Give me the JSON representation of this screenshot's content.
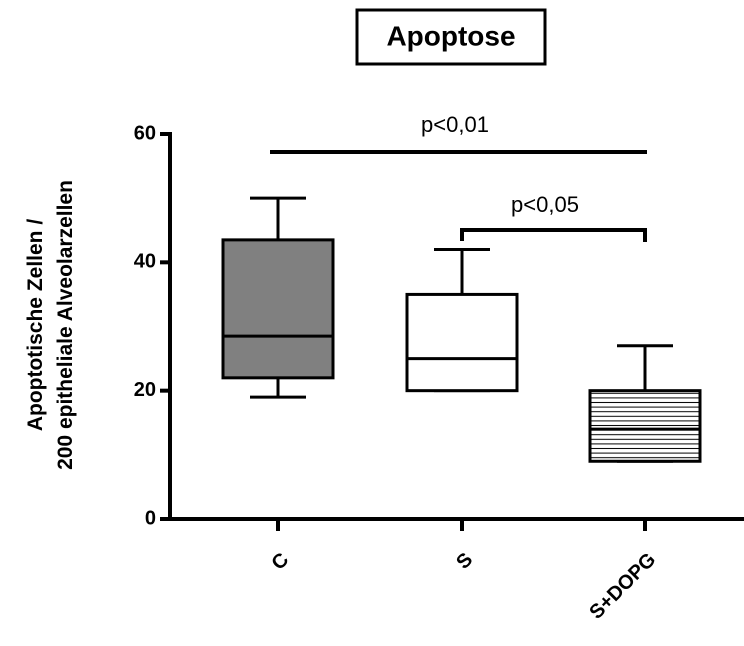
{
  "chart_data": {
    "type": "box",
    "title": "Apoptose",
    "y_label": [
      "Apoptotische Zellen /",
      "200 epitheliale Alveolarzellen"
    ],
    "categories": [
      "C",
      "S",
      "S+DOPG"
    ],
    "boxes": [
      {
        "min": 19,
        "q1": 22,
        "median": 28.5,
        "q3": 43.5,
        "max": 50,
        "color": "#808080"
      },
      {
        "min": 20,
        "q1": 20,
        "median": 25,
        "q3": 35,
        "max": 42,
        "color": "#ffffff"
      },
      {
        "min": 9,
        "q1": 9,
        "median": 14,
        "q3": 20,
        "max": 27,
        "color": "#ffffff",
        "pattern": "horizontal-lines"
      }
    ],
    "annotations": [
      "p<0,01",
      "p<0,05"
    ],
    "ylim": [
      0,
      60
    ],
    "yticks": [
      0,
      20,
      40,
      60
    ]
  }
}
